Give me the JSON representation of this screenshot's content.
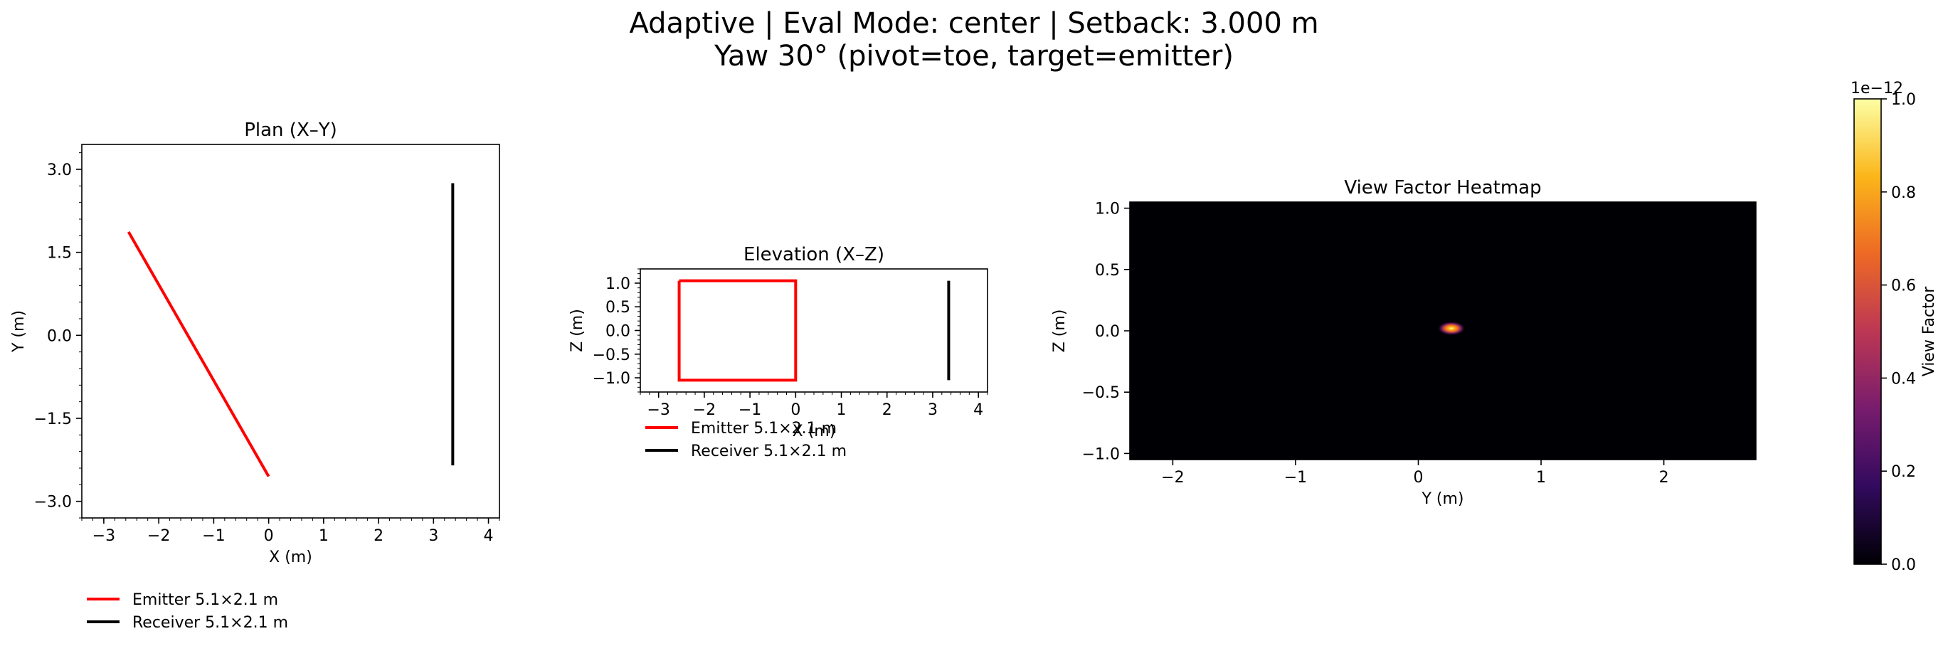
{
  "title": {
    "line1": "Adaptive | Eval Mode: center | Setback: 3.000 m",
    "line2": "Yaw 30° (pivot=toe, target=emitter)"
  },
  "colors": {
    "emitter": "#ff0000",
    "receiver": "#000000",
    "heatmap_background": "#000004",
    "colormap": [
      "#000004",
      "#320a5e",
      "#781c6d",
      "#bc3754",
      "#ed6925",
      "#fbb61a",
      "#fcffa4"
    ]
  },
  "chart_data": [
    {
      "id": "plan",
      "type": "line",
      "title": "Plan (X–Y)",
      "xlabel": "X (m)",
      "ylabel": "Y (m)",
      "xlim": [
        -3.4,
        4.2
      ],
      "ylim": [
        -3.3,
        3.45
      ],
      "xticks": [
        -3,
        -2,
        -1,
        0,
        1,
        2,
        3,
        4
      ],
      "xtick_labels": [
        "−3",
        "−2",
        "−1",
        "0",
        "1",
        "2",
        "3",
        "4"
      ],
      "yticks": [
        -3.0,
        -1.5,
        0.0,
        1.5,
        3.0
      ],
      "ytick_labels": [
        "−3.0",
        "−1.5",
        "0.0",
        "1.5",
        "3.0"
      ],
      "grid": false,
      "legend": "below",
      "series": [
        {
          "name": "Emitter 5.1×2.1 m",
          "color": "#ff0000",
          "x": [
            -2.55,
            0.0
          ],
          "y": [
            1.87,
            -2.55
          ]
        },
        {
          "name": "Receiver 5.1×2.1 m",
          "color": "#000000",
          "x": [
            3.35,
            3.35
          ],
          "y": [
            2.75,
            -2.35
          ]
        }
      ]
    },
    {
      "id": "elevation",
      "type": "line",
      "title": "Elevation (X–Z)",
      "xlabel": "X (m)",
      "ylabel": "Z (m)",
      "xlim": [
        -3.4,
        4.2
      ],
      "ylim": [
        -1.3,
        1.3
      ],
      "xticks": [
        -3,
        -2,
        -1,
        0,
        1,
        2,
        3,
        4
      ],
      "xtick_labels": [
        "−3",
        "−2",
        "−1",
        "0",
        "1",
        "2",
        "3",
        "4"
      ],
      "yticks": [
        -1.0,
        -0.5,
        0.0,
        0.5,
        1.0
      ],
      "ytick_labels": [
        "−1.0",
        "−0.5",
        "0.0",
        "0.5",
        "1.0"
      ],
      "grid": false,
      "legend": "below",
      "series": [
        {
          "name": "Emitter 5.1×2.1 m",
          "color": "#ff0000",
          "x": [
            -2.55,
            0.0,
            0.0,
            -2.55,
            -2.55
          ],
          "y": [
            1.05,
            1.05,
            -1.05,
            -1.05,
            1.05
          ]
        },
        {
          "name": "Receiver 5.1×2.1 m",
          "color": "#000000",
          "x": [
            3.35,
            3.35
          ],
          "y": [
            1.05,
            -1.05
          ]
        }
      ]
    },
    {
      "id": "heatmap",
      "type": "heatmap",
      "title": "View Factor Heatmap",
      "xlabel": "Y (m)",
      "ylabel": "Z (m)",
      "xlim": [
        -2.35,
        2.75
      ],
      "ylim": [
        -1.05,
        1.05
      ],
      "xticks": [
        -2,
        -1,
        0,
        1,
        2
      ],
      "xtick_labels": [
        "−2",
        "−1",
        "0",
        "1",
        "2"
      ],
      "yticks": [
        -1.0,
        -0.5,
        0.0,
        0.5,
        1.0
      ],
      "ytick_labels": [
        "−1.0",
        "−0.5",
        "0.0",
        "0.5",
        "1.0"
      ],
      "peak": {
        "y": 0.27,
        "z": 0.02,
        "value": 1e-12
      },
      "colorbar": {
        "label": "View Factor",
        "range": [
          0.0,
          1.0
        ],
        "ticks": [
          0.0,
          0.2,
          0.4,
          0.6,
          0.8,
          1.0
        ],
        "tick_labels": [
          "0.0",
          "0.2",
          "0.4",
          "0.6",
          "0.8",
          "1.0"
        ],
        "offset_label": "1e−12"
      }
    }
  ]
}
